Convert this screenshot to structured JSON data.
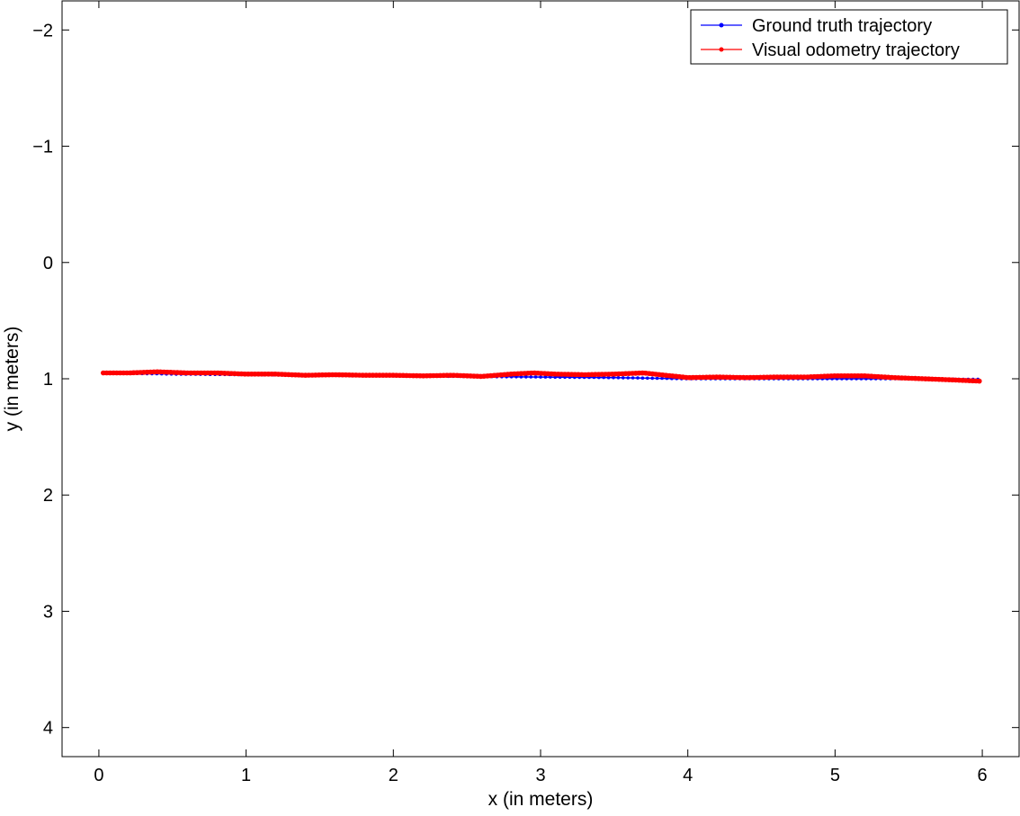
{
  "chart_data": {
    "type": "line",
    "title": "",
    "xlabel": "x (in meters)",
    "ylabel": "y (in meters)",
    "xlim": [
      -0.25,
      6.25
    ],
    "ylim": [
      -2.25,
      4.25
    ],
    "y_reversed": true,
    "xticks": [
      0,
      1,
      2,
      3,
      4,
      5,
      6
    ],
    "yticks": [
      -2,
      -1,
      0,
      1,
      2,
      3,
      4
    ],
    "xtick_labels": [
      "0",
      "1",
      "2",
      "3",
      "4",
      "5",
      "6"
    ],
    "ytick_labels": [
      "−2",
      "−1",
      "0",
      "1",
      "2",
      "3",
      "4"
    ],
    "grid": false,
    "legend_position": "top-right",
    "series": [
      {
        "name": "Ground truth trajectory",
        "color": "#0000ff",
        "x": [
          0.03,
          0.5,
          1.0,
          1.5,
          2.0,
          2.5,
          3.0,
          3.5,
          4.0,
          4.5,
          5.0,
          5.5,
          5.97
        ],
        "y": [
          0.95,
          0.96,
          0.965,
          0.97,
          0.975,
          0.98,
          0.985,
          0.99,
          1.0,
          1.0,
          1.0,
          1.0,
          1.005
        ]
      },
      {
        "name": "Visual odometry trajectory",
        "color": "#ff0000",
        "x": [
          0.03,
          0.2,
          0.4,
          0.6,
          0.8,
          1.0,
          1.2,
          1.4,
          1.6,
          1.8,
          2.0,
          2.2,
          2.4,
          2.6,
          2.8,
          2.95,
          3.1,
          3.3,
          3.5,
          3.7,
          3.85,
          4.0,
          4.2,
          4.4,
          4.6,
          4.8,
          5.0,
          5.2,
          5.4,
          5.6,
          5.8,
          5.98
        ],
        "y": [
          0.95,
          0.95,
          0.94,
          0.95,
          0.95,
          0.96,
          0.96,
          0.97,
          0.965,
          0.97,
          0.97,
          0.975,
          0.97,
          0.98,
          0.96,
          0.95,
          0.96,
          0.965,
          0.96,
          0.95,
          0.97,
          0.99,
          0.985,
          0.99,
          0.985,
          0.985,
          0.975,
          0.975,
          0.99,
          1.0,
          1.01,
          1.02
        ]
      }
    ]
  }
}
